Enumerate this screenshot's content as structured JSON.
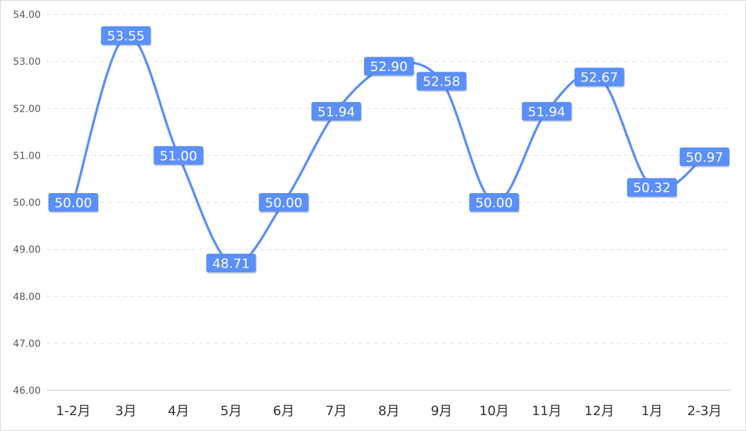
{
  "colors": {
    "series": "#5b8ff9",
    "label_bg": "#5b8ff9",
    "label_text": "#ffffff",
    "grid": "#dcdcdc"
  },
  "chart_data": {
    "type": "line",
    "smooth": true,
    "grid": true,
    "categories": [
      "1-2月",
      "3月",
      "4月",
      "5月",
      "6月",
      "7月",
      "8月",
      "9月",
      "10月",
      "11月",
      "12月",
      "1月",
      "2-3月"
    ],
    "series": [
      {
        "values": [
          50.0,
          53.55,
          51.0,
          48.71,
          50.0,
          51.94,
          52.9,
          52.58,
          50.0,
          51.94,
          52.67,
          50.32,
          50.97
        ]
      }
    ],
    "data_labels": [
      "50.00",
      "53.55",
      "51.00",
      "48.71",
      "50.00",
      "51.94",
      "52.90",
      "52.58",
      "50.00",
      "51.94",
      "52.67",
      "50.32",
      "50.97"
    ],
    "ylim": [
      46,
      54
    ],
    "yticks": [
      "46.00",
      "47.00",
      "48.00",
      "49.00",
      "50.00",
      "51.00",
      "52.00",
      "53.00",
      "54.00"
    ],
    "title": "",
    "xlabel": "",
    "ylabel": ""
  }
}
